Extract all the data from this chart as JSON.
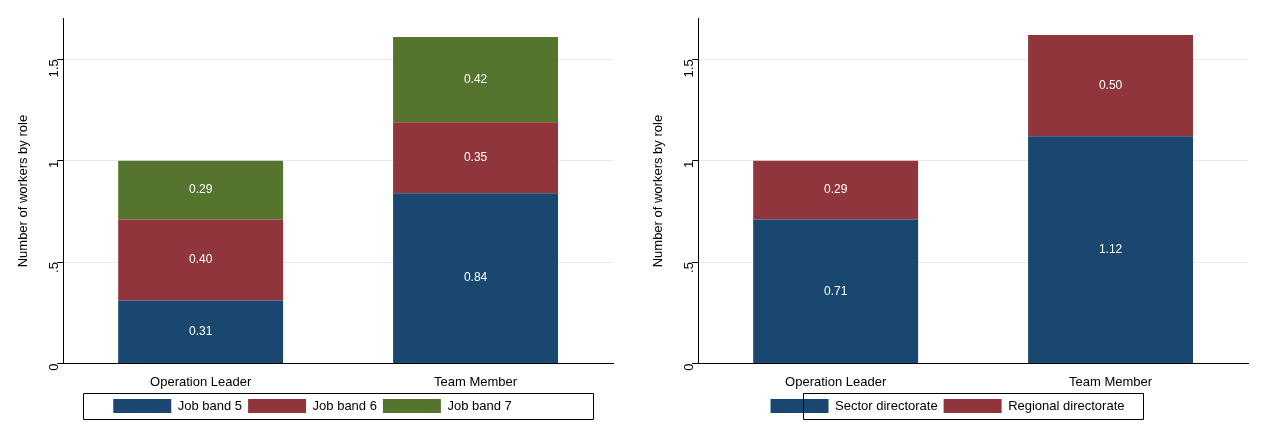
{
  "chart_data": [
    {
      "type": "bar",
      "stacked": true,
      "categories": [
        "Operation Leader",
        "Team Member"
      ],
      "ylabel": "Number of workers by role",
      "ylim": [
        0,
        1.7
      ],
      "yticks": [
        0,
        {
          "value": 0.5,
          "label": ".5"
        },
        1,
        1.5
      ],
      "grid": "y",
      "legend": "bottom",
      "series": [
        {
          "name": "Job band 5",
          "color": "#1a476f",
          "values": [
            0.31,
            0.84
          ],
          "value_labels": [
            "0.31",
            "0.84"
          ]
        },
        {
          "name": "Job band 6",
          "color": "#90353b",
          "values": [
            0.4,
            0.35
          ],
          "value_labels": [
            "0.40",
            "0.35"
          ]
        },
        {
          "name": "Job band 7",
          "color": "#55752f",
          "values": [
            0.29,
            0.42
          ],
          "value_labels": [
            "0.29",
            "0.42"
          ]
        }
      ]
    },
    {
      "type": "bar",
      "stacked": true,
      "categories": [
        "Operation Leader",
        "Team Member"
      ],
      "ylabel": "Number of workers by role",
      "ylim": [
        0,
        1.7
      ],
      "yticks": [
        0,
        {
          "value": 0.5,
          "label": ".5"
        },
        1,
        1.5
      ],
      "grid": "y",
      "legend": "bottom",
      "series": [
        {
          "name": "Sector directorate",
          "color": "#1a476f",
          "values": [
            0.71,
            1.12
          ],
          "value_labels": [
            "0.71",
            "1.12"
          ]
        },
        {
          "name": "Regional directorate",
          "color": "#90353b",
          "values": [
            0.29,
            0.5
          ],
          "value_labels": [
            "0.29",
            "0.50"
          ]
        }
      ]
    }
  ]
}
